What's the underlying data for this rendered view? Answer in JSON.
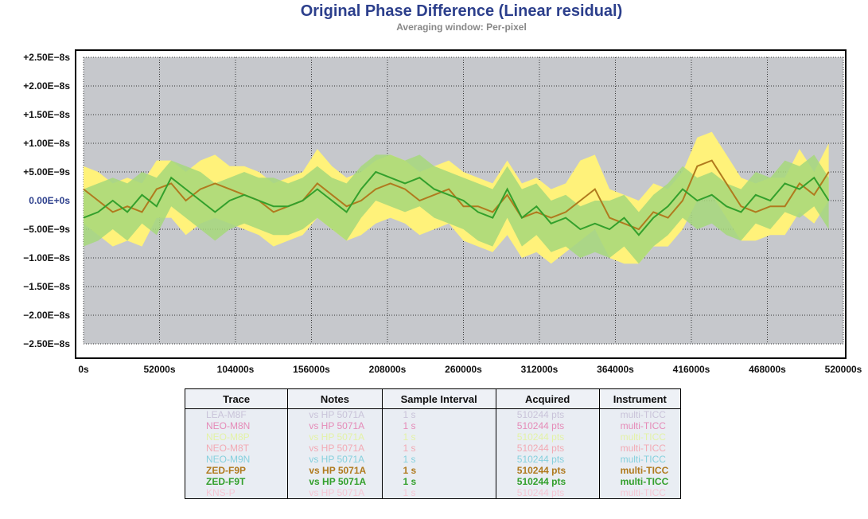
{
  "chart_data": {
    "type": "band-line",
    "title": "Original Phase Difference (Linear residual)",
    "subtitle": "Averaging window: Per-pixel",
    "x": [
      0,
      10000,
      20000,
      30000,
      40000,
      50000,
      60000,
      70000,
      80000,
      90000,
      100000,
      110000,
      120000,
      130000,
      140000,
      150000,
      160000,
      170000,
      180000,
      190000,
      200000,
      210000,
      220000,
      230000,
      240000,
      250000,
      260000,
      270000,
      280000,
      290000,
      300000,
      310000,
      320000,
      330000,
      340000,
      350000,
      360000,
      370000,
      380000,
      390000,
      400000,
      410000,
      420000,
      430000,
      440000,
      450000,
      460000,
      470000,
      480000,
      490000,
      500000,
      510000
    ],
    "series": [
      {
        "name": "ZED-F9P",
        "color": "#b07a1e",
        "band_color": "#fff27a",
        "values": [
          2e-09,
          0,
          -2e-09,
          -1e-09,
          -2e-09,
          2e-09,
          3e-09,
          0,
          2e-09,
          3e-09,
          2e-09,
          1e-09,
          0,
          -2e-09,
          -1e-09,
          0,
          3e-09,
          1e-09,
          -1e-09,
          0,
          2e-09,
          3e-09,
          2e-09,
          0,
          1e-09,
          2e-09,
          -1e-09,
          -1e-09,
          -2e-09,
          1e-09,
          -3e-09,
          -2e-09,
          -3e-09,
          -2e-09,
          0,
          2e-09,
          -3e-09,
          -4e-09,
          -5e-09,
          -2e-09,
          -3e-09,
          0,
          6e-09,
          7e-09,
          3e-09,
          -1e-09,
          -2e-09,
          -1e-09,
          -1e-09,
          3e-09,
          1e-09,
          5e-09
        ],
        "max": [
          6e-09,
          5e-09,
          3e-09,
          4e-09,
          3e-09,
          7e-09,
          7e-09,
          5e-09,
          7e-09,
          8e-09,
          6e-09,
          6e-09,
          5e-09,
          3e-09,
          4e-09,
          5e-09,
          9e-09,
          6e-09,
          4e-09,
          5e-09,
          7e-09,
          8e-09,
          7e-09,
          5e-09,
          6e-09,
          7e-09,
          5e-09,
          4e-09,
          3e-09,
          7e-09,
          3e-09,
          4e-09,
          2e-09,
          3e-09,
          7e-09,
          8e-09,
          2e-09,
          1e-09,
          0,
          3e-09,
          2e-09,
          5e-09,
          1.1e-08,
          1.2e-08,
          8e-09,
          4e-09,
          3e-09,
          4e-09,
          4e-09,
          9e-09,
          5e-09,
          1e-08
        ],
        "min": [
          -4e-09,
          -6e-09,
          -8e-09,
          -7e-09,
          -8e-09,
          -3e-09,
          -3e-09,
          -6e-09,
          -4e-09,
          -3e-09,
          -4e-09,
          -5e-09,
          -6e-09,
          -8e-09,
          -7e-09,
          -6e-09,
          -3e-09,
          -5e-09,
          -7e-09,
          -6e-09,
          -4e-09,
          -3e-09,
          -4e-09,
          -6e-09,
          -5e-09,
          -4e-09,
          -7e-09,
          -8e-09,
          -9e-09,
          -6e-09,
          -1e-08,
          -9e-09,
          -1.1e-08,
          -9e-09,
          -7e-09,
          -5e-09,
          -1e-08,
          -1.1e-08,
          -1.1e-08,
          -8e-09,
          -8e-09,
          -5e-09,
          0,
          1e-09,
          -3e-09,
          -7e-09,
          -7e-09,
          -6e-09,
          -6e-09,
          -2e-09,
          -4e-09,
          0
        ]
      },
      {
        "name": "ZED-F9T",
        "color": "#33a02c",
        "band_color": "#a6d87a",
        "values": [
          -3e-09,
          -2e-09,
          0,
          -2e-09,
          1e-09,
          -1e-09,
          4e-09,
          2e-09,
          0,
          -2e-09,
          0,
          1e-09,
          0,
          -1e-09,
          -1e-09,
          0,
          2e-09,
          0,
          -2e-09,
          2e-09,
          5e-09,
          4e-09,
          3e-09,
          4e-09,
          2e-09,
          1e-09,
          0,
          -2e-09,
          -3e-09,
          2e-09,
          -3e-09,
          -1e-09,
          -4e-09,
          -3e-09,
          -5e-09,
          -4e-09,
          -5e-09,
          -3e-09,
          -6e-09,
          -3e-09,
          -1e-09,
          2e-09,
          0,
          1e-09,
          -1e-09,
          -2e-09,
          1e-09,
          0,
          3e-09,
          2e-09,
          4e-09,
          0
        ],
        "max": [
          2e-09,
          3e-09,
          4e-09,
          3e-09,
          5e-09,
          4e-09,
          7e-09,
          6e-09,
          5e-09,
          3e-09,
          4e-09,
          5e-09,
          4e-09,
          4e-09,
          3e-09,
          4e-09,
          6e-09,
          4e-09,
          3e-09,
          6e-09,
          8e-09,
          8e-09,
          7e-09,
          8e-09,
          6e-09,
          5e-09,
          4e-09,
          3e-09,
          2e-09,
          6e-09,
          2e-09,
          3e-09,
          0,
          1e-09,
          -1e-09,
          0,
          0,
          1e-09,
          -2e-09,
          1e-09,
          3e-09,
          6e-09,
          4e-09,
          5e-09,
          3e-09,
          2e-09,
          5e-09,
          4e-09,
          7e-09,
          6e-09,
          8e-09,
          4e-09
        ],
        "min": [
          -8e-09,
          -7e-09,
          -5e-09,
          -7e-09,
          -4e-09,
          -6e-09,
          -1e-09,
          -3e-09,
          -5e-09,
          -7e-09,
          -5e-09,
          -4e-09,
          -5e-09,
          -6e-09,
          -6e-09,
          -5e-09,
          -3e-09,
          -5e-09,
          -7e-09,
          -3e-09,
          0,
          -1e-09,
          -2e-09,
          -1e-09,
          -3e-09,
          -4e-09,
          -5e-09,
          -7e-09,
          -8e-09,
          -3e-09,
          -8e-09,
          -6e-09,
          -9e-09,
          -8e-09,
          -1e-08,
          -9e-09,
          -1e-08,
          -8e-09,
          -1.1e-08,
          -8e-09,
          -6e-09,
          -3e-09,
          -5e-09,
          -4e-09,
          -6e-09,
          -7e-09,
          -4e-09,
          -5e-09,
          -2e-09,
          -3e-09,
          -1e-09,
          -5e-09
        ]
      }
    ],
    "xlim": [
      0,
      520000
    ],
    "xticks": [
      {
        "value": 0,
        "label": "0s"
      },
      {
        "value": 52000,
        "label": "52000s"
      },
      {
        "value": 104000,
        "label": "104000s"
      },
      {
        "value": 156000,
        "label": "156000s"
      },
      {
        "value": 208000,
        "label": "208000s"
      },
      {
        "value": 260000,
        "label": "260000s"
      },
      {
        "value": 312000,
        "label": "312000s"
      },
      {
        "value": 364000,
        "label": "364000s"
      },
      {
        "value": 416000,
        "label": "416000s"
      },
      {
        "value": 468000,
        "label": "468000s"
      },
      {
        "value": 520000,
        "label": "520000s"
      }
    ],
    "ylim": [
      -2.5e-08,
      2.5e-08
    ],
    "yticks": [
      {
        "value": 2.5e-08,
        "label": "+2.50E−8s"
      },
      {
        "value": 2e-08,
        "label": "+2.00E−8s"
      },
      {
        "value": 1.5e-08,
        "label": "+1.50E−8s"
      },
      {
        "value": 1e-08,
        "label": "+1.00E−8s"
      },
      {
        "value": 5e-09,
        "label": "+5.00E−9s"
      },
      {
        "value": 0,
        "label": "0.00E+0s"
      },
      {
        "value": -5e-09,
        "label": "−5.00E−9s"
      },
      {
        "value": -1e-08,
        "label": "−1.00E−8s"
      },
      {
        "value": -1.5e-08,
        "label": "−1.50E−8s"
      },
      {
        "value": -2e-08,
        "label": "−2.00E−8s"
      },
      {
        "value": -2.5e-08,
        "label": "−2.50E−8s"
      }
    ],
    "grid": true
  },
  "table": {
    "columns": [
      "Trace",
      "Notes",
      "Sample Interval",
      "Acquired",
      "Instrument"
    ],
    "rows": [
      {
        "color": "#c9c3d9",
        "cells": [
          "LEA-M8F",
          "vs HP 5071A",
          "1 s",
          "510244 pts",
          "multi-TICC"
        ]
      },
      {
        "color": "#e58bb8",
        "cells": [
          "NEO-M8N",
          "vs HP 5071A",
          "1 s",
          "510244 pts",
          "multi-TICC"
        ]
      },
      {
        "color": "#e3f2a6",
        "cells": [
          "NEO-M8P",
          "vs HP 5071A",
          "1 s",
          "510244 pts",
          "multi-TICC"
        ]
      },
      {
        "color": "#f2aab4",
        "cells": [
          "NEO-M8T",
          "vs HP 5071A",
          "1 s",
          "510244 pts",
          "multi-TICC"
        ]
      },
      {
        "color": "#86d0dd",
        "cells": [
          "NEO-M9N",
          "vs HP 5071A",
          "1 s",
          "510244 pts",
          "multi-TICC"
        ]
      },
      {
        "color": "#b07a1e",
        "cells": [
          "ZED-F9P",
          "vs HP 5071A",
          "1 s",
          "510244 pts",
          "multi-TICC"
        ]
      },
      {
        "color": "#33a02c",
        "cells": [
          "ZED-F9T",
          "vs HP 5071A",
          "1 s",
          "510244 pts",
          "multi-TICC"
        ]
      },
      {
        "color": "#f5c6d4",
        "cells": [
          "KNS-P",
          "vs HP 5071A",
          "1 s",
          "510244 pts",
          "multi-TICC"
        ]
      }
    ]
  }
}
